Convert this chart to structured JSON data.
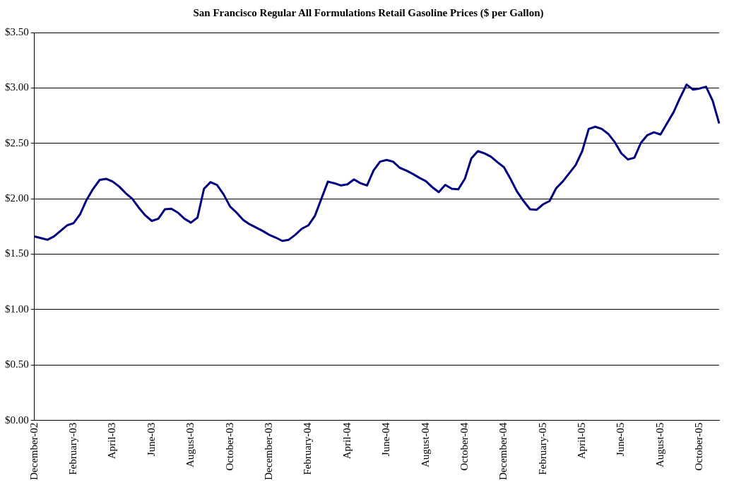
{
  "chart_data": {
    "type": "line",
    "title": "San Francisco Regular All Formulations Retail Gasoline Prices ($ per Gallon)",
    "categories": [
      "December-02",
      null,
      null,
      null,
      null,
      null,
      "February-03",
      null,
      null,
      null,
      null,
      null,
      "April-03",
      null,
      null,
      null,
      null,
      null,
      "June-03",
      null,
      null,
      null,
      null,
      null,
      "August-03",
      null,
      null,
      null,
      null,
      null,
      "October-03",
      null,
      null,
      null,
      null,
      null,
      "December-03",
      null,
      null,
      null,
      null,
      null,
      "February-04",
      null,
      null,
      null,
      null,
      null,
      "April-04",
      null,
      null,
      null,
      null,
      null,
      "June-04",
      null,
      null,
      null,
      null,
      null,
      "August-04",
      null,
      null,
      null,
      null,
      null,
      "October-04",
      null,
      null,
      null,
      null,
      null,
      "December-04",
      null,
      null,
      null,
      null,
      null,
      "February-05",
      null,
      null,
      null,
      null,
      null,
      "April-05",
      null,
      null,
      null,
      null,
      null,
      "June-05",
      null,
      null,
      null,
      null,
      null,
      "August-05",
      null,
      null,
      null,
      null,
      null,
      "October-05",
      null,
      null,
      null
    ],
    "series": [
      {
        "color": "#000080",
        "values": [
          1.66,
          1.645,
          1.63,
          1.66,
          1.71,
          1.76,
          1.78,
          1.86,
          1.99,
          2.09,
          2.17,
          2.18,
          2.155,
          2.11,
          2.05,
          2.0,
          1.92,
          1.85,
          1.8,
          1.82,
          1.905,
          1.91,
          1.875,
          1.82,
          1.785,
          1.83,
          2.09,
          2.15,
          2.125,
          2.04,
          1.93,
          1.875,
          1.81,
          1.77,
          1.74,
          1.71,
          1.675,
          1.65,
          1.62,
          1.63,
          1.675,
          1.73,
          1.76,
          1.845,
          2.0,
          2.155,
          2.14,
          2.12,
          2.13,
          2.175,
          2.14,
          2.12,
          2.255,
          2.335,
          2.35,
          2.335,
          2.28,
          2.255,
          2.225,
          2.19,
          2.16,
          2.105,
          2.06,
          2.125,
          2.09,
          2.085,
          2.18,
          2.365,
          2.43,
          2.41,
          2.38,
          2.33,
          2.285,
          2.18,
          2.065,
          1.98,
          1.905,
          1.9,
          1.95,
          1.98,
          2.095,
          2.155,
          2.23,
          2.305,
          2.43,
          2.63,
          2.65,
          2.63,
          2.585,
          2.51,
          2.41,
          2.355,
          2.37,
          2.505,
          2.575,
          2.6,
          2.58,
          2.68,
          2.78,
          2.91,
          3.03,
          2.985,
          2.995,
          3.01,
          2.885,
          2.68
        ]
      }
    ],
    "ylim": [
      0,
      3.5
    ],
    "yticks": [
      {
        "value": 0,
        "label": "$0.00"
      },
      {
        "value": 0.5,
        "label": "$0.50"
      },
      {
        "value": 1,
        "label": "$1.00"
      },
      {
        "value": 1.5,
        "label": "$1.50"
      },
      {
        "value": 2,
        "label": "$2.00"
      },
      {
        "value": 2.5,
        "label": "$2.50"
      },
      {
        "value": 3,
        "label": "$3.00"
      },
      {
        "value": 3.5,
        "label": "$3.50"
      }
    ],
    "grid": "y"
  }
}
